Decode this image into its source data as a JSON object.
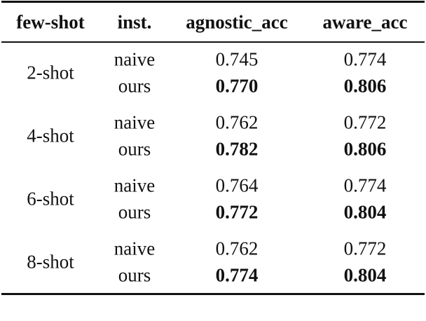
{
  "table": {
    "header": [
      "few-shot",
      "inst.",
      "agnostic_acc",
      "aware_acc"
    ],
    "groups": [
      {
        "shot": "2-shot",
        "rows": [
          [
            "naive",
            "0.745",
            "0.774"
          ],
          [
            "ours",
            "0.770",
            "0.806"
          ]
        ]
      },
      {
        "shot": "4-shot",
        "rows": [
          [
            "naive",
            "0.762",
            "0.772"
          ],
          [
            "ours",
            "0.782",
            "0.806"
          ]
        ]
      },
      {
        "shot": "6-shot",
        "rows": [
          [
            "naive",
            "0.764",
            "0.774"
          ],
          [
            "ours",
            "0.772",
            "0.804"
          ]
        ]
      },
      {
        "shot": "8-shot",
        "rows": [
          [
            "naive",
            "0.762",
            "0.772"
          ],
          [
            "ours",
            "0.774",
            "0.804"
          ]
        ]
      }
    ]
  }
}
